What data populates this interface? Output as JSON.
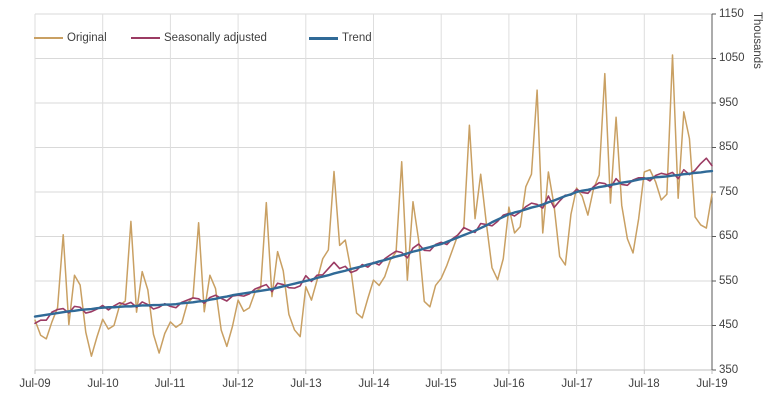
{
  "legend": {
    "items": [
      {
        "label": "Original",
        "color": "#C9A063",
        "thickness": 2
      },
      {
        "label": "Seasonally adjusted",
        "color": "#9B3B63",
        "thickness": 2
      },
      {
        "label": "Trend",
        "color": "#306A97",
        "thickness": 3
      }
    ]
  },
  "y_axis": {
    "unit_label": "Thousands",
    "min": 350,
    "max": 1150,
    "tick_step": 100,
    "tick_labels": [
      "1150",
      "1050",
      "950",
      "850",
      "750",
      "650",
      "550",
      "450",
      "350"
    ]
  },
  "x_axis": {
    "tick_labels": [
      "Jul-09",
      "Jul-10",
      "Jul-11",
      "Jul-12",
      "Jul-13",
      "Jul-14",
      "Jul-15",
      "Jul-16",
      "Jul-17",
      "Jul-18",
      "Jul-19"
    ]
  },
  "chart_data": {
    "type": "line",
    "title": "",
    "frequency": "monthly",
    "x_start": "Jul-2009",
    "x_end": "Jul-2019",
    "ylim": [
      350,
      1150
    ],
    "grid": true,
    "legend_position": "top-left",
    "colors": {
      "grid": "#D9D9D9",
      "grid_vertical": "#DEDEDE",
      "x_axis_line": "#BFBFBF",
      "y_axis_line": "#595959"
    },
    "series": [
      {
        "name": "Original",
        "color": "#C9A063",
        "width": 1.5,
        "values": [
          462,
          428,
          420,
          458,
          490,
          654,
          452,
          563,
          541,
          435,
          381,
          425,
          464,
          442,
          450,
          495,
          505,
          684,
          480,
          571,
          530,
          430,
          388,
          432,
          458,
          446,
          455,
          500,
          513,
          681,
          481,
          563,
          533,
          440,
          403,
          448,
          507,
          482,
          490,
          525,
          535,
          726,
          515,
          616,
          573,
          475,
          440,
          425,
          537,
          507,
          552,
          600,
          620,
          796,
          630,
          642,
          575,
          478,
          467,
          511,
          552,
          540,
          560,
          598,
          615,
          818,
          552,
          728,
          642,
          504,
          492,
          540,
          556,
          585,
          620,
          655,
          668,
          900,
          690,
          790,
          680,
          580,
          553,
          600,
          716,
          658,
          672,
          762,
          790,
          979,
          658,
          795,
          720,
          605,
          586,
          700,
          759,
          740,
          698,
          757,
          788,
          1016,
          725,
          918,
          720,
          645,
          613,
          690,
          795,
          800,
          773,
          732,
          745,
          1058,
          736,
          930,
          870,
          694,
          676,
          669,
          745
        ]
      },
      {
        "name": "Seasonally adjusted",
        "color": "#9B3B63",
        "width": 1.6,
        "values": [
          455,
          462,
          462,
          480,
          486,
          488,
          478,
          493,
          491,
          478,
          481,
          487,
          495,
          485,
          494,
          501,
          497,
          502,
          491,
          503,
          497,
          487,
          491,
          499,
          493,
          490,
          502,
          507,
          512,
          510,
          500,
          513,
          518,
          511,
          505,
          516,
          518,
          516,
          521,
          532,
          537,
          542,
          526,
          545,
          542,
          535,
          534,
          539,
          562,
          549,
          563,
          564,
          578,
          592,
          578,
          583,
          569,
          574,
          587,
          581,
          592,
          586,
          600,
          609,
          617,
          614,
          602,
          624,
          633,
          619,
          618,
          632,
          637,
          632,
          645,
          654,
          670,
          664,
          659,
          679,
          677,
          674,
          684,
          698,
          702,
          696,
          705,
          717,
          725,
          722,
          714,
          741,
          715,
          730,
          743,
          743,
          756,
          749,
          747,
          762,
          771,
          769,
          760,
          780,
          767,
          765,
          777,
          782,
          782,
          775,
          787,
          792,
          789,
          794,
          780,
          800,
          789,
          799,
          814,
          826,
          809
        ]
      },
      {
        "name": "Trend",
        "color": "#306A97",
        "width": 2.4,
        "values": [
          470,
          472,
          474,
          476,
          478,
          480,
          482,
          483,
          485,
          486,
          487,
          489,
          490,
          491,
          491,
          492,
          493,
          493,
          494,
          495,
          495,
          496,
          496,
          497,
          497,
          498,
          500,
          501,
          502,
          504,
          505,
          508,
          510,
          513,
          515,
          518,
          520,
          522,
          524,
          526,
          528,
          530,
          532,
          535,
          538,
          541,
          544,
          547,
          550,
          553,
          557,
          560,
          563,
          567,
          570,
          573,
          577,
          580,
          583,
          587,
          590,
          594,
          597,
          601,
          605,
          608,
          612,
          616,
          619,
          623,
          626,
          630,
          633,
          638,
          643,
          648,
          653,
          658,
          663,
          669,
          675,
          682,
          688,
          694,
          700,
          704,
          707,
          711,
          715,
          718,
          722,
          727,
          731,
          736,
          741,
          745,
          750,
          753,
          755,
          758,
          761,
          763,
          766,
          768,
          771,
          773,
          775,
          778,
          780,
          781,
          783,
          784,
          785,
          787,
          788,
          790,
          791,
          793,
          794,
          796,
          797
        ]
      }
    ]
  }
}
